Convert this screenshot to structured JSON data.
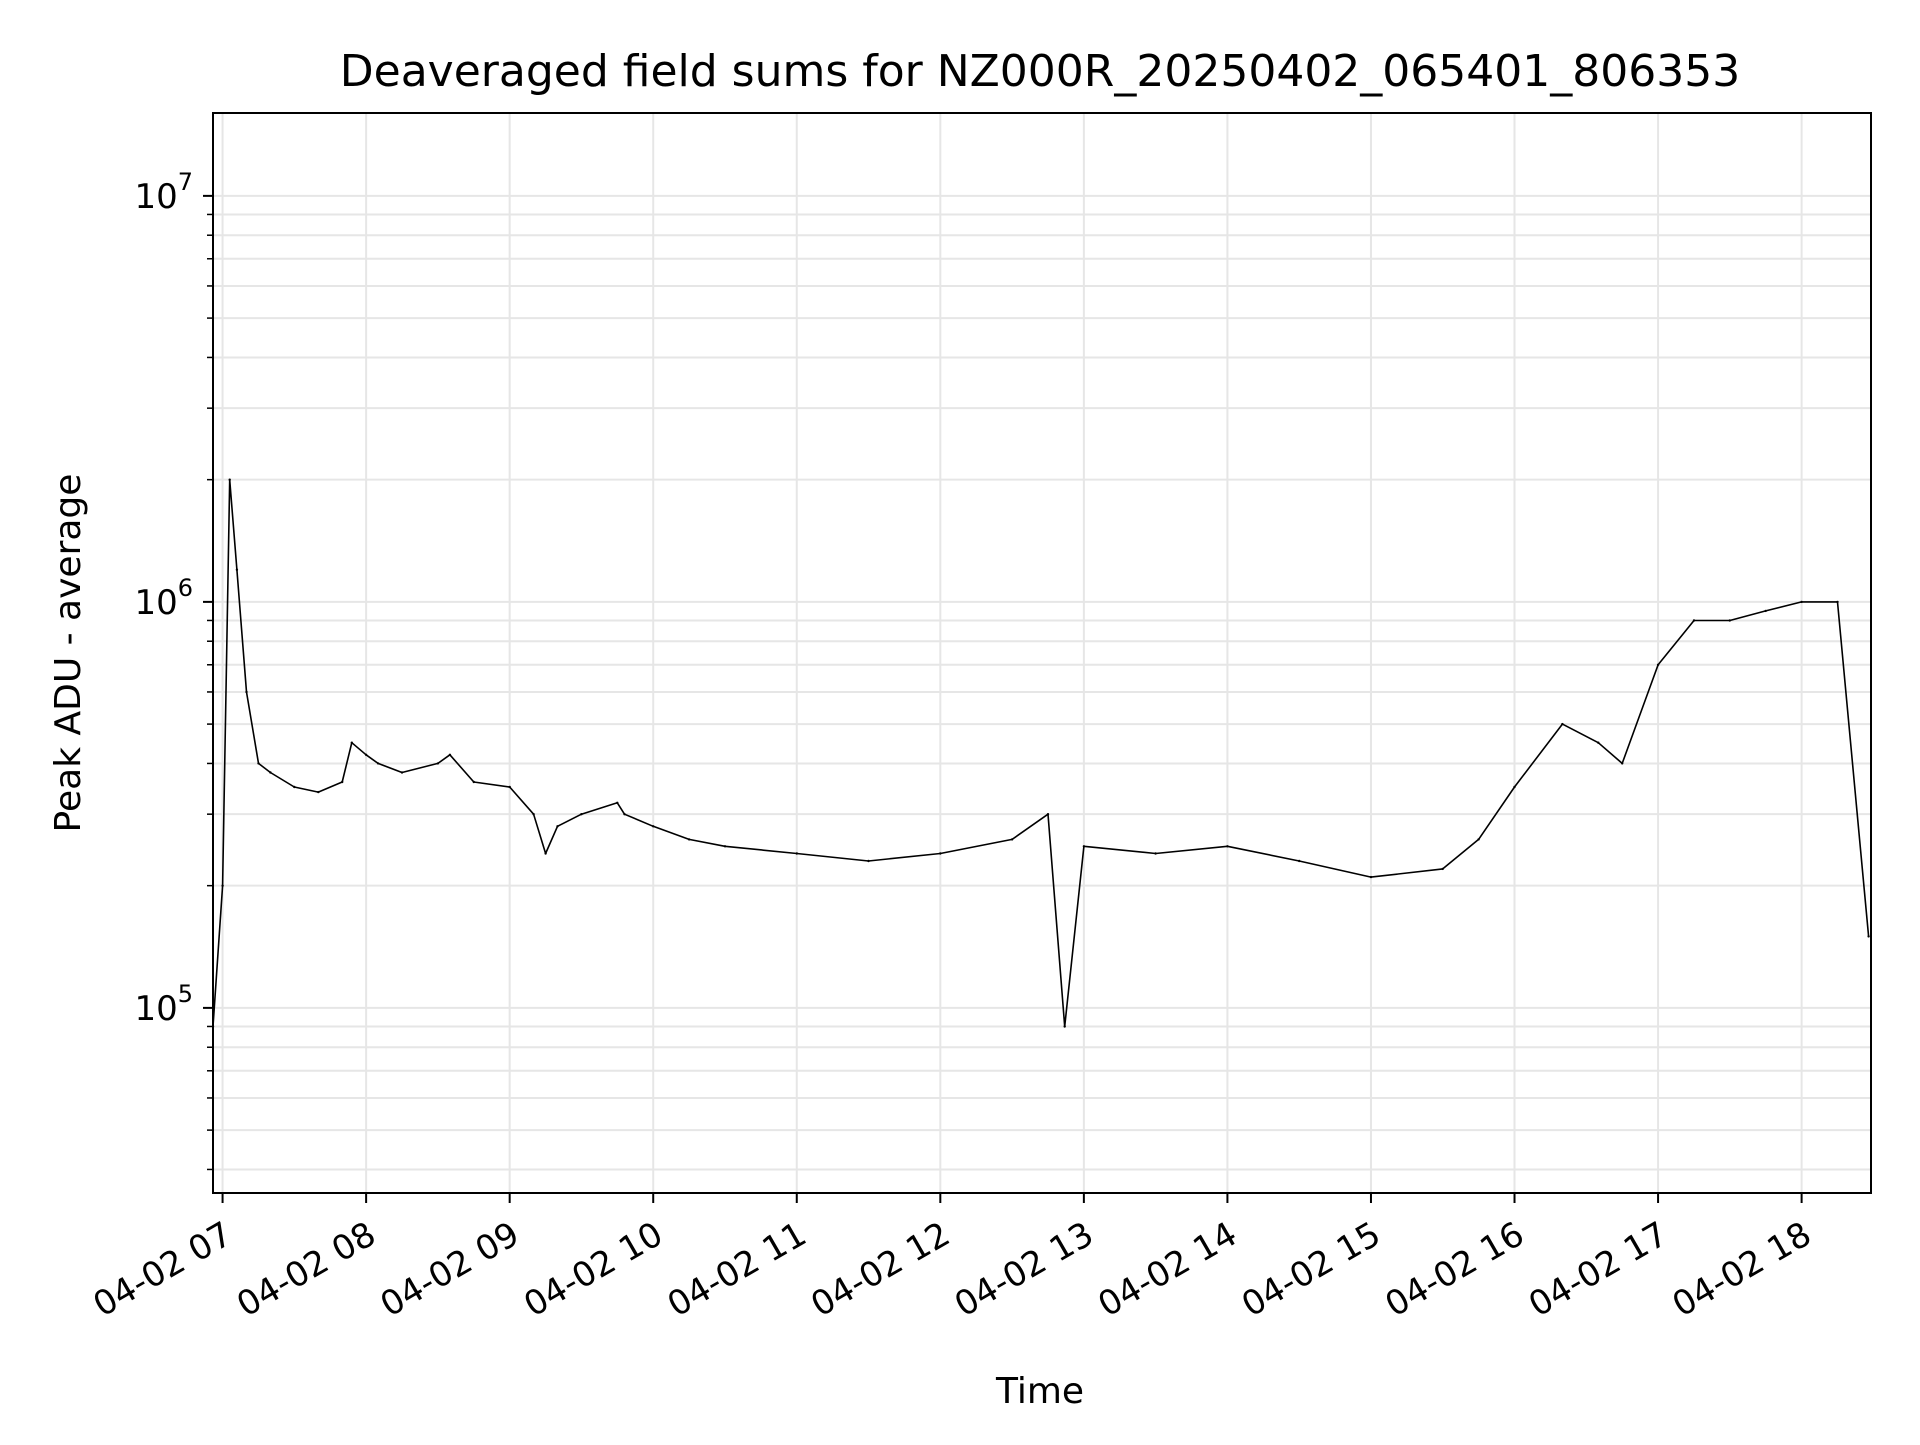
{
  "chart_data": {
    "type": "line",
    "title": "Deaveraged field sums for NZ000R_20250402_065401_806353",
    "xlabel": "Time",
    "ylabel": "Peak ADU - average",
    "y_scale": "log",
    "ylim": [
      35000,
      16000000
    ],
    "xlim": [
      "2025-04-02 06:56",
      "2025-04-02 18:29"
    ],
    "grid": true,
    "line_color": "#000000",
    "grid_color": "#e6e6e6",
    "x_ticks": [
      {
        "t": "2025-04-02 07:00",
        "label": "04-02 07"
      },
      {
        "t": "2025-04-02 08:00",
        "label": "04-02 08"
      },
      {
        "t": "2025-04-02 09:00",
        "label": "04-02 09"
      },
      {
        "t": "2025-04-02 10:00",
        "label": "04-02 10"
      },
      {
        "t": "2025-04-02 11:00",
        "label": "04-02 11"
      },
      {
        "t": "2025-04-02 12:00",
        "label": "04-02 12"
      },
      {
        "t": "2025-04-02 13:00",
        "label": "04-02 13"
      },
      {
        "t": "2025-04-02 14:00",
        "label": "04-02 14"
      },
      {
        "t": "2025-04-02 15:00",
        "label": "04-02 15"
      },
      {
        "t": "2025-04-02 16:00",
        "label": "04-02 16"
      },
      {
        "t": "2025-04-02 17:00",
        "label": "04-02 17"
      },
      {
        "t": "2025-04-02 18:00",
        "label": "04-02 18"
      }
    ],
    "y_ticks": [
      {
        "value": 100000,
        "base": "10",
        "exp": "5"
      },
      {
        "value": 1000000,
        "base": "10",
        "exp": "6"
      },
      {
        "value": 10000000,
        "base": "10",
        "exp": "7"
      }
    ],
    "series": [
      {
        "x": [
          "2025-04-02 06:56",
          "2025-04-02 07:00",
          "2025-04-02 07:03",
          "2025-04-02 07:06",
          "2025-04-02 07:10",
          "2025-04-02 07:15",
          "2025-04-02 07:20",
          "2025-04-02 07:30",
          "2025-04-02 07:40",
          "2025-04-02 07:50",
          "2025-04-02 07:54",
          "2025-04-02 08:00",
          "2025-04-02 08:05",
          "2025-04-02 08:15",
          "2025-04-02 08:30",
          "2025-04-02 08:35",
          "2025-04-02 08:45",
          "2025-04-02 09:00",
          "2025-04-02 09:10",
          "2025-04-02 09:15",
          "2025-04-02 09:20",
          "2025-04-02 09:30",
          "2025-04-02 09:45",
          "2025-04-02 09:48",
          "2025-04-02 10:00",
          "2025-04-02 10:15",
          "2025-04-02 10:30",
          "2025-04-02 11:00",
          "2025-04-02 11:30",
          "2025-04-02 12:00",
          "2025-04-02 12:30",
          "2025-04-02 12:45",
          "2025-04-02 12:52",
          "2025-04-02 13:00",
          "2025-04-02 13:30",
          "2025-04-02 14:00",
          "2025-04-02 14:30",
          "2025-04-02 15:00",
          "2025-04-02 15:30",
          "2025-04-02 15:45",
          "2025-04-02 16:00",
          "2025-04-02 16:20",
          "2025-04-02 16:35",
          "2025-04-02 16:45",
          "2025-04-02 17:00",
          "2025-04-02 17:15",
          "2025-04-02 17:30",
          "2025-04-02 17:45",
          "2025-04-02 18:00",
          "2025-04-02 18:15",
          "2025-04-02 18:28"
        ],
        "y": [
          90000,
          200000,
          2000000,
          1200000,
          600000,
          400000,
          380000,
          350000,
          340000,
          360000,
          450000,
          420000,
          400000,
          380000,
          400000,
          420000,
          360000,
          350000,
          300000,
          240000,
          280000,
          300000,
          320000,
          300000,
          280000,
          260000,
          250000,
          240000,
          230000,
          240000,
          260000,
          300000,
          90000,
          250000,
          240000,
          250000,
          230000,
          210000,
          220000,
          260000,
          350000,
          500000,
          450000,
          400000,
          700000,
          900000,
          900000,
          950000,
          1000000,
          1000000,
          150000
        ]
      }
    ]
  }
}
